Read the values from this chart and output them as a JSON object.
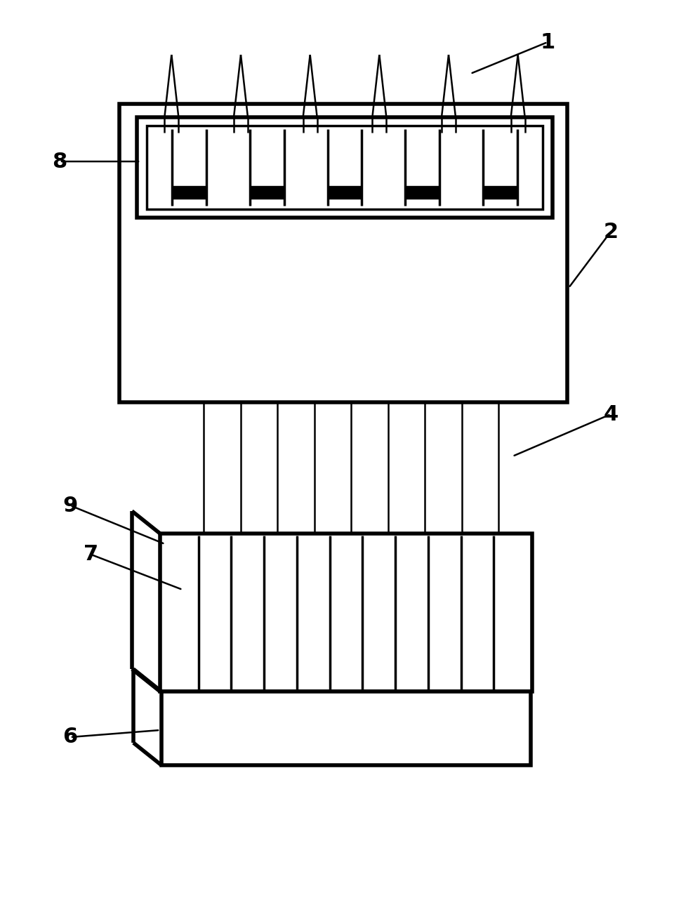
{
  "bg_color": "#ffffff",
  "line_color": "#000000",
  "lw_thin": 1.5,
  "lw_med": 2.5,
  "lw_thick": 4.0,
  "fig_width": 9.8,
  "fig_height": 12.82
}
